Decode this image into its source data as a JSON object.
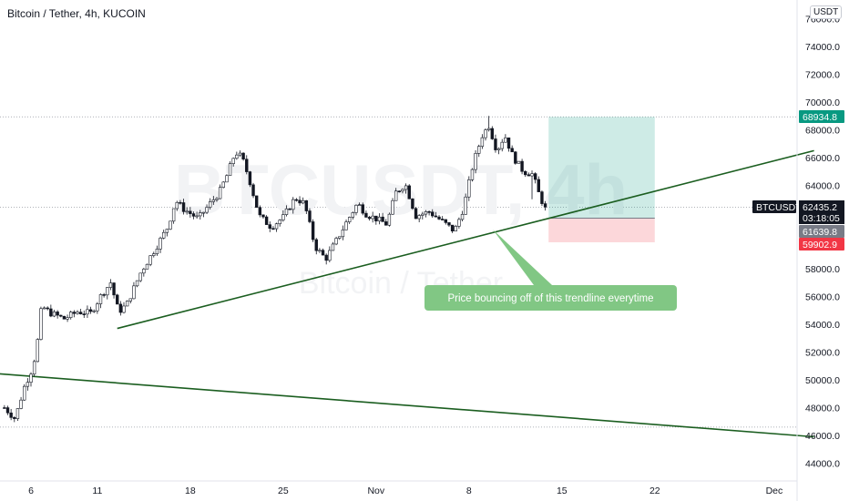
{
  "header": {
    "title": "Bitcoin / Tether, 4h, KUCOIN",
    "currency": "USDT"
  },
  "watermark": {
    "symbol": "BTCUSDT, 4h",
    "name": "Bitcoin / Tether"
  },
  "annotation": {
    "text": "Price bouncing off of this trendline everytime",
    "color": "#81c784"
  },
  "price_tags": {
    "target": {
      "value": "68934.8",
      "color": "#089981"
    },
    "symbol_label": "BTCUSDT",
    "last": {
      "value": "62435.2",
      "countdown": "03:18:05",
      "color": "#131722"
    },
    "entry": {
      "value": "61639.8",
      "color": "#787b86"
    },
    "stop": {
      "value": "59902.9",
      "color": "#f23645"
    }
  },
  "chart_data": {
    "type": "candlestick",
    "y_axis": {
      "ylim": [
        43000,
        76000
      ],
      "ticks": [
        "44000.0",
        "46000.0",
        "48000.0",
        "50000.0",
        "52000.0",
        "54000.0",
        "56000.0",
        "58000.0",
        "60000.0",
        "62000.0",
        "64000.0",
        "66000.0",
        "68000.0",
        "70000.0",
        "72000.0",
        "74000.0",
        "76000.0"
      ]
    },
    "x_axis": {
      "ticks": [
        {
          "label": "6",
          "day": 6
        },
        {
          "label": "11",
          "day": 11
        },
        {
          "label": "18",
          "day": 18
        },
        {
          "label": "25",
          "day": 25
        },
        {
          "label": "Nov",
          "day": 32
        },
        {
          "label": "8",
          "day": 39
        },
        {
          "label": "15",
          "day": 46
        },
        {
          "label": "22",
          "day": 53
        },
        {
          "label": "Dec",
          "day": 62
        }
      ]
    },
    "price_path": [
      [
        4,
        48000
      ],
      [
        4.8,
        47200
      ],
      [
        5.5,
        49500
      ],
      [
        6,
        50600
      ],
      [
        6.4,
        52000
      ],
      [
        6.8,
        55300
      ],
      [
        7.5,
        54800
      ],
      [
        8.5,
        54400
      ],
      [
        9.5,
        54900
      ],
      [
        10.5,
        54800
      ],
      [
        11.3,
        56100
      ],
      [
        12.0,
        57000
      ],
      [
        12.6,
        54900
      ],
      [
        13.2,
        55400
      ],
      [
        14.3,
        57800
      ],
      [
        15.4,
        59500
      ],
      [
        16.3,
        61000
      ],
      [
        16.9,
        62900
      ],
      [
        17.5,
        62300
      ],
      [
        18.6,
        61600
      ],
      [
        19.5,
        62700
      ],
      [
        20.2,
        63500
      ],
      [
        20.8,
        64800
      ],
      [
        21.4,
        66400
      ],
      [
        21.9,
        66000
      ],
      [
        22.4,
        64600
      ],
      [
        23.2,
        61800
      ],
      [
        24.1,
        61000
      ],
      [
        25.0,
        61700
      ],
      [
        25.9,
        63100
      ],
      [
        26.6,
        62700
      ],
      [
        27.4,
        59600
      ],
      [
        28.2,
        58700
      ],
      [
        29.0,
        60000
      ],
      [
        29.8,
        61400
      ],
      [
        30.6,
        62700
      ],
      [
        31.3,
        61900
      ],
      [
        32.0,
        61600
      ],
      [
        32.8,
        61200
      ],
      [
        33.5,
        63500
      ],
      [
        34.2,
        64100
      ],
      [
        35.0,
        61800
      ],
      [
        36.0,
        62100
      ],
      [
        37.0,
        61400
      ],
      [
        37.9,
        60700
      ],
      [
        38.6,
        62400
      ],
      [
        39.3,
        65500
      ],
      [
        40.0,
        67600
      ],
      [
        40.5,
        68300
      ],
      [
        41.1,
        66500
      ],
      [
        41.7,
        67600
      ],
      [
        42.3,
        66100
      ],
      [
        43.1,
        65000
      ],
      [
        43.8,
        64800
      ],
      [
        44.3,
        63300
      ],
      [
        44.7,
        62435
      ]
    ],
    "trendlines": [
      {
        "from": [
          12.5,
          53700
        ],
        "to": [
          65,
          66500
        ],
        "color": "#1b5e20"
      },
      {
        "from": [
          0,
          50700
        ],
        "to": [
          65,
          45900
        ],
        "color": "#1b5e20"
      }
    ],
    "position": {
      "type": "long",
      "start_day": 45,
      "end_day": 53,
      "entry": 61639.8,
      "target": 68934.8,
      "stop": 59902.9
    },
    "horizontal_lines": [
      68934.8,
      62435.2,
      46600
    ]
  }
}
